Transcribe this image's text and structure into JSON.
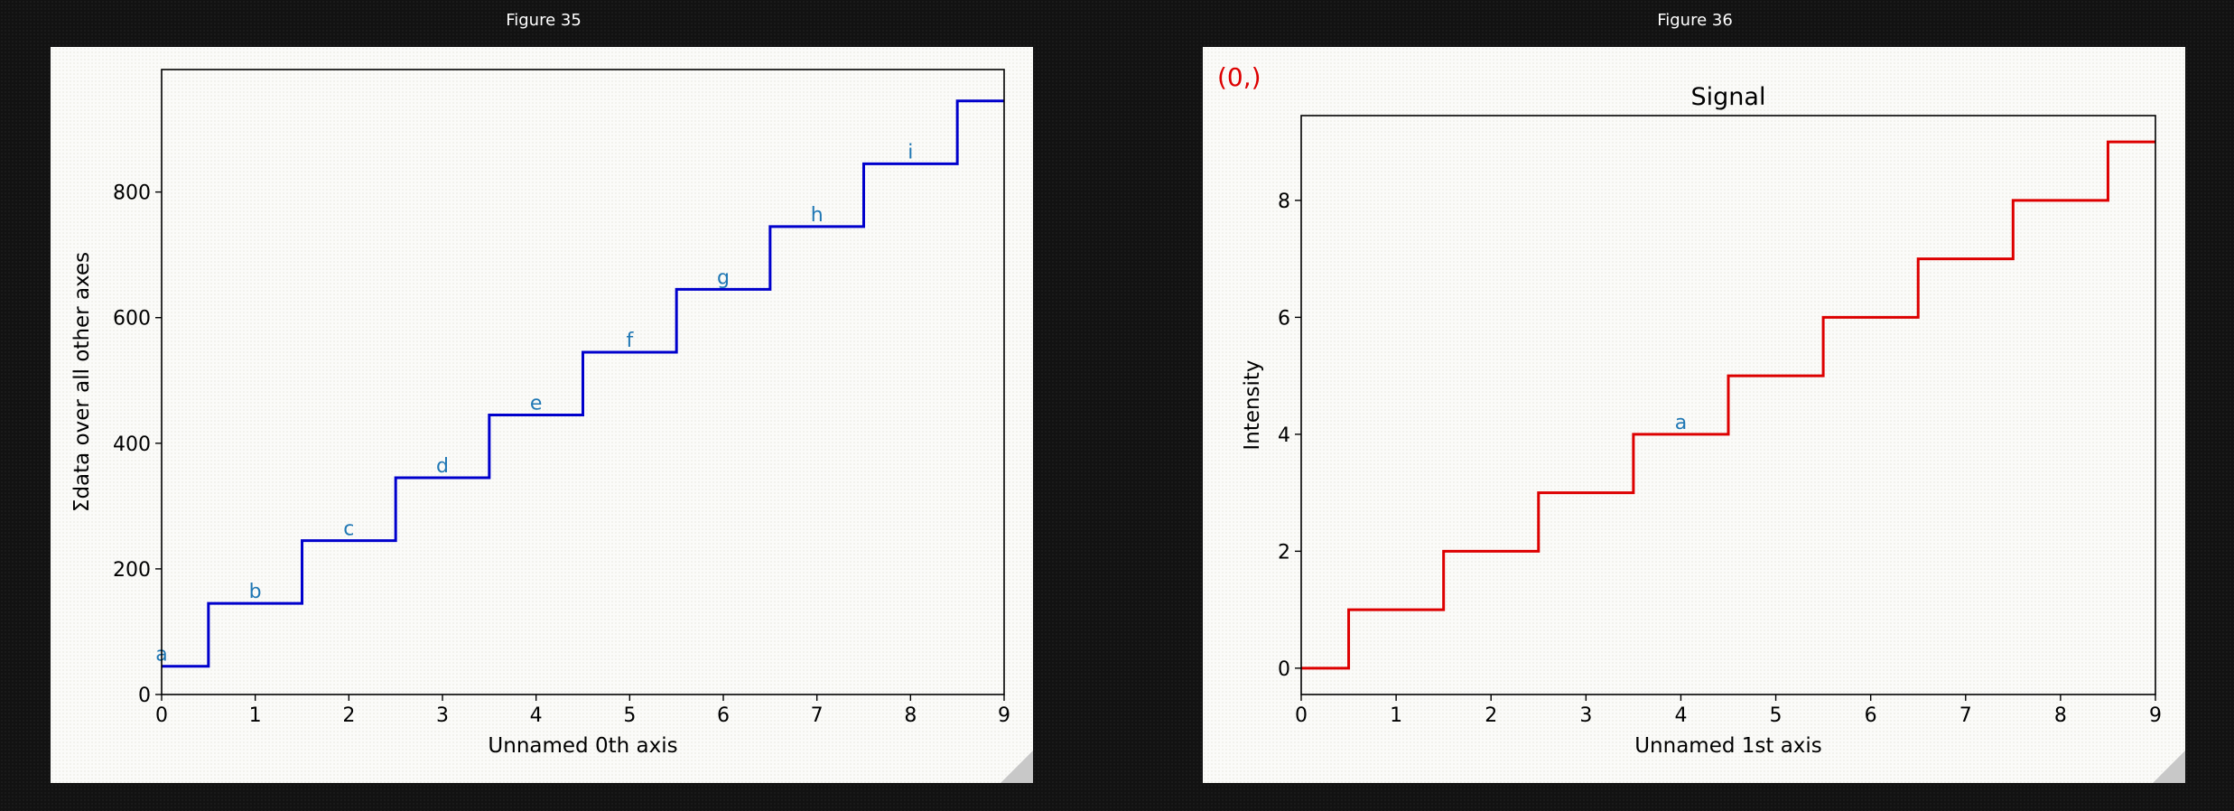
{
  "figures": [
    {
      "window_title": "Figure 35",
      "corner_label": "",
      "chart_data": {
        "type": "line",
        "drawstyle": "steps-mid",
        "title": "",
        "xlabel": "Unnamed 0th axis",
        "ylabel": "Σdata over all other axes",
        "xlim": [
          0,
          9
        ],
        "ylim": [
          0,
          995
        ],
        "xticks": [
          "0",
          "1",
          "2",
          "3",
          "4",
          "5",
          "6",
          "7",
          "8",
          "9"
        ],
        "yticks": [
          "0",
          "200",
          "400",
          "600",
          "800"
        ],
        "grid": false,
        "line_color": "#0000cc",
        "label_color": "#1f77b4",
        "series": [
          {
            "x": [
              0,
              1,
              2,
              3,
              4,
              5,
              6,
              7,
              8,
              9
            ],
            "y": [
              45,
              145,
              245,
              345,
              445,
              545,
              645,
              745,
              845,
              945
            ]
          }
        ],
        "annotations": [
          {
            "text": "a",
            "x": 0,
            "y": 45
          },
          {
            "text": "b",
            "x": 1,
            "y": 145
          },
          {
            "text": "c",
            "x": 2,
            "y": 245
          },
          {
            "text": "d",
            "x": 3,
            "y": 345
          },
          {
            "text": "e",
            "x": 4,
            "y": 445
          },
          {
            "text": "f",
            "x": 5,
            "y": 545
          },
          {
            "text": "g",
            "x": 6,
            "y": 645
          },
          {
            "text": "h",
            "x": 7,
            "y": 745
          },
          {
            "text": "i",
            "x": 8,
            "y": 845
          }
        ]
      }
    },
    {
      "window_title": "Figure 36",
      "corner_label": "(0,)",
      "corner_label_color": "#dd0000",
      "chart_data": {
        "type": "line",
        "drawstyle": "steps-mid",
        "title": "Signal",
        "xlabel": "Unnamed 1st axis",
        "ylabel": "Intensity",
        "xlim": [
          0,
          9
        ],
        "ylim": [
          -0.45,
          9.45
        ],
        "xticks": [
          "0",
          "1",
          "2",
          "3",
          "4",
          "5",
          "6",
          "7",
          "8",
          "9"
        ],
        "yticks": [
          "0",
          "2",
          "4",
          "6",
          "8"
        ],
        "grid": false,
        "line_color": "#dd0000",
        "label_color": "#1f77b4",
        "series": [
          {
            "x": [
              0,
              1,
              2,
              3,
              4,
              5,
              6,
              7,
              8,
              9
            ],
            "y": [
              0,
              1,
              2,
              3,
              4,
              5,
              6,
              7,
              8,
              9
            ]
          }
        ],
        "annotations": [
          {
            "text": "a",
            "x": 4,
            "y": 4
          }
        ]
      }
    }
  ]
}
